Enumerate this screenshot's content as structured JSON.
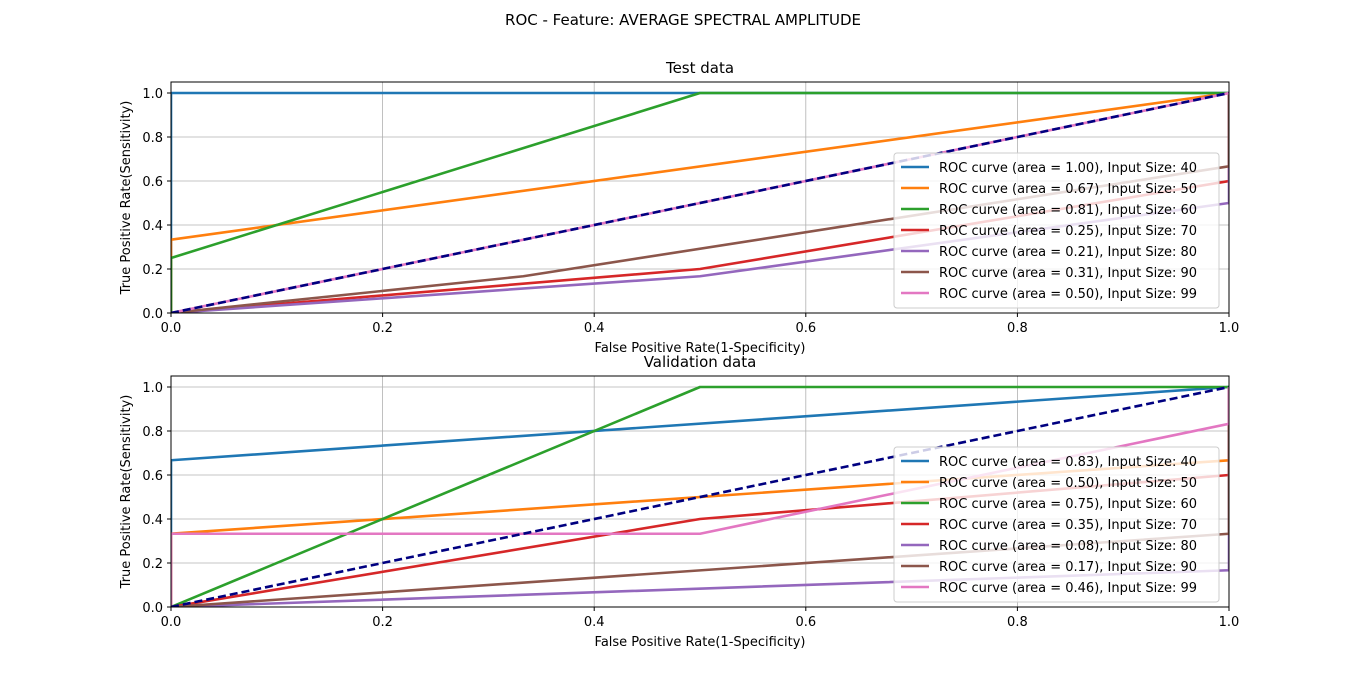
{
  "figure": {
    "suptitle": "ROC - Feature: AVERAGE SPECTRAL AMPLITUDE"
  },
  "chart_data": [
    {
      "type": "line",
      "title": "Test data",
      "xlabel": "False Positive Rate(1-Specificity)",
      "ylabel": "True Positive Rate(Sensitivity)",
      "xlim": [
        0,
        1
      ],
      "ylim": [
        0,
        1.05
      ],
      "xticks": [
        "0.0",
        "0.2",
        "0.4",
        "0.6",
        "0.8",
        "1.0"
      ],
      "yticks": [
        "0.0",
        "0.2",
        "0.4",
        "0.6",
        "0.8",
        "1.0"
      ],
      "grid": true,
      "legend_position": "lower right",
      "series": [
        {
          "name": "ROC curve (area = 1.00), Input Size: 40",
          "color": "#1f77b4",
          "x": [
            0,
            0,
            1
          ],
          "y": [
            0,
            1,
            1
          ]
        },
        {
          "name": "ROC curve (area = 0.67), Input Size: 50",
          "color": "#ff7f0e",
          "x": [
            0,
            0,
            1,
            1
          ],
          "y": [
            0,
            0.333,
            1,
            1
          ]
        },
        {
          "name": "ROC curve (area = 0.81), Input Size: 60",
          "color": "#2ca02c",
          "x": [
            0,
            0,
            0.5,
            1
          ],
          "y": [
            0,
            0.25,
            1,
            1
          ]
        },
        {
          "name": "ROC curve (area = 0.25), Input Size: 70",
          "color": "#d62728",
          "x": [
            0,
            0.5,
            1,
            1
          ],
          "y": [
            0,
            0.2,
            0.6,
            1
          ]
        },
        {
          "name": "ROC curve (area = 0.21), Input Size: 80",
          "color": "#9467bd",
          "x": [
            0,
            0.5,
            1,
            1
          ],
          "y": [
            0,
            0.167,
            0.5,
            1
          ]
        },
        {
          "name": "ROC curve (area = 0.31), Input Size: 90",
          "color": "#8c564b",
          "x": [
            0,
            0.333,
            1,
            1
          ],
          "y": [
            0,
            0.167,
            0.667,
            1
          ]
        },
        {
          "name": "ROC curve (area = 0.50), Input Size: 99",
          "color": "#e377c2",
          "x": [
            0,
            1
          ],
          "y": [
            0,
            1
          ]
        }
      ],
      "diagonal": {
        "x": [
          0,
          1
        ],
        "y": [
          0,
          1
        ],
        "color": "#000080",
        "style": "dashed"
      }
    },
    {
      "type": "line",
      "title": "Validation data",
      "xlabel": "False Positive Rate(1-Specificity)",
      "ylabel": "True Positive Rate(Sensitivity)",
      "xlim": [
        0,
        1
      ],
      "ylim": [
        0,
        1.05
      ],
      "xticks": [
        "0.0",
        "0.2",
        "0.4",
        "0.6",
        "0.8",
        "1.0"
      ],
      "yticks": [
        "0.0",
        "0.2",
        "0.4",
        "0.6",
        "0.8",
        "1.0"
      ],
      "grid": true,
      "legend_position": "lower right",
      "series": [
        {
          "name": "ROC curve (area = 0.83), Input Size: 40",
          "color": "#1f77b4",
          "x": [
            0,
            0,
            1
          ],
          "y": [
            0,
            0.667,
            1
          ]
        },
        {
          "name": "ROC curve (area = 0.50), Input Size: 50",
          "color": "#ff7f0e",
          "x": [
            0,
            0,
            1,
            1
          ],
          "y": [
            0,
            0.333,
            0.667,
            1
          ]
        },
        {
          "name": "ROC curve (area = 0.75), Input Size: 60",
          "color": "#2ca02c",
          "x": [
            0,
            0.5,
            1
          ],
          "y": [
            0,
            1,
            1
          ]
        },
        {
          "name": "ROC curve (area = 0.35), Input Size: 70",
          "color": "#d62728",
          "x": [
            0,
            0.5,
            1,
            1
          ],
          "y": [
            0,
            0.4,
            0.6,
            1
          ]
        },
        {
          "name": "ROC curve (area = 0.08), Input Size: 80",
          "color": "#9467bd",
          "x": [
            0,
            1,
            1
          ],
          "y": [
            0,
            0.167,
            1
          ]
        },
        {
          "name": "ROC curve (area = 0.17), Input Size: 90",
          "color": "#8c564b",
          "x": [
            0,
            1,
            1
          ],
          "y": [
            0,
            0.333,
            1
          ]
        },
        {
          "name": "ROC curve (area = 0.46), Input Size: 99",
          "color": "#e377c2",
          "x": [
            0,
            0,
            0.5,
            1,
            1
          ],
          "y": [
            0,
            0.333,
            0.333,
            0.833,
            1
          ]
        }
      ],
      "diagonal": {
        "x": [
          0,
          1
        ],
        "y": [
          0,
          1
        ],
        "color": "#000080",
        "style": "dashed"
      }
    }
  ]
}
